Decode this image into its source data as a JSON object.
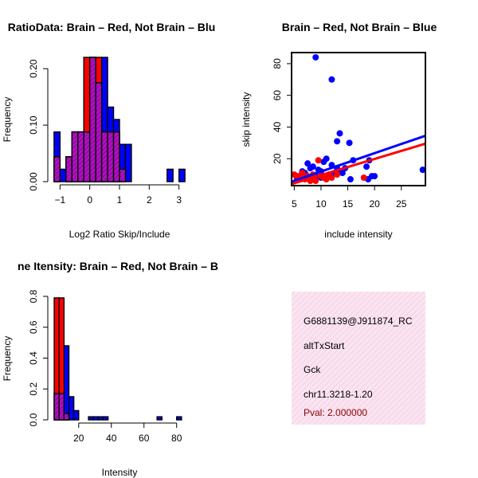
{
  "chart_data": [
    {
      "type": "bar",
      "title": "RatioData: Brain – Red, Not Brain – Blu",
      "xlabel": "Log2 Ratio Skip/Include",
      "ylabel": "Frequency",
      "xlim": [
        -1.25,
        3.25
      ],
      "ylim": [
        0,
        0.22
      ],
      "xticks": [
        -1,
        0,
        1,
        2,
        3
      ],
      "yticks": [
        "0.00",
        "0.10",
        "0.20"
      ],
      "series": [
        {
          "name": "Not Brain",
          "color": "#0000ff",
          "bins": [
            [
              -1.2,
              -1.0,
              0.088
            ],
            [
              -1.0,
              -0.8,
              0.022
            ],
            [
              -0.8,
              -0.6,
              0.044
            ],
            [
              -0.6,
              -0.4,
              0.088
            ],
            [
              -0.4,
              -0.2,
              0.088
            ],
            [
              -0.2,
              0.0,
              0.088
            ],
            [
              0.0,
              0.2,
              0.22
            ],
            [
              0.2,
              0.4,
              0.175
            ],
            [
              0.4,
              0.6,
              0.22
            ],
            [
              0.6,
              0.8,
              0.132
            ],
            [
              0.8,
              1.0,
              0.11
            ],
            [
              1.0,
              1.2,
              0.066
            ],
            [
              1.2,
              1.4,
              0.066
            ],
            [
              2.6,
              2.8,
              0.022
            ],
            [
              3.0,
              3.2,
              0.022
            ]
          ]
        },
        {
          "name": "Brain",
          "color": "#ff0000",
          "bins": [
            [
              -1.2,
              -1.0,
              0.044
            ],
            [
              -1.0,
              -0.8,
              0.0
            ],
            [
              -0.8,
              -0.6,
              0.044
            ],
            [
              -0.6,
              -0.4,
              0.088
            ],
            [
              -0.4,
              -0.2,
              0.088
            ],
            [
              -0.2,
              0.0,
              0.22
            ],
            [
              0.0,
              0.2,
              0.22
            ],
            [
              0.2,
              0.4,
              0.22
            ],
            [
              0.4,
              0.6,
              0.088
            ],
            [
              0.6,
              0.8,
              0.088
            ],
            [
              0.8,
              1.0,
              0.088
            ],
            [
              1.0,
              1.2,
              0.022
            ]
          ]
        }
      ]
    },
    {
      "type": "scatter",
      "title": "Brain – Red, Not Brain – Blue",
      "xlabel": "include intensity",
      "ylabel": "skip intensity",
      "xlim": [
        4.5,
        29.5
      ],
      "ylim": [
        3,
        87
      ],
      "xticks": [
        5,
        10,
        15,
        20,
        25
      ],
      "yticks": [
        20,
        40,
        60,
        80
      ],
      "series": [
        {
          "name": "Not Brain",
          "color": "#0000ff",
          "points": [
            [
              9,
              84
            ],
            [
              12,
              70
            ],
            [
              13.5,
              36
            ],
            [
              13,
              31
            ],
            [
              15.3,
              30
            ],
            [
              16,
              19
            ],
            [
              14.5,
              14
            ],
            [
              18.5,
              15
            ],
            [
              19,
              19
            ],
            [
              19.5,
              9
            ],
            [
              20,
              9
            ],
            [
              18.8,
              7
            ],
            [
              15.5,
              7
            ],
            [
              29,
              13
            ],
            [
              11,
              20
            ],
            [
              10.5,
              18
            ],
            [
              12,
              16
            ],
            [
              13,
              14
            ],
            [
              7.5,
              17
            ],
            [
              8,
              14
            ],
            [
              6.5,
              12
            ],
            [
              7,
              11
            ],
            [
              8.5,
              15
            ],
            [
              9.5,
              13
            ],
            [
              10,
              12
            ],
            [
              11.5,
              10
            ],
            [
              12.5,
              11
            ],
            [
              6,
              9
            ],
            [
              5.5,
              8
            ],
            [
              9,
              9
            ],
            [
              10,
              8
            ],
            [
              8,
              7
            ],
            [
              7,
              8
            ],
            [
              13,
              12
            ],
            [
              14,
              11
            ]
          ],
          "fit": [
            [
              4.5,
              5.5
            ],
            [
              29.5,
              34.5
            ]
          ]
        },
        {
          "name": "Brain",
          "color": "#ff0000",
          "points": [
            [
              5,
              10
            ],
            [
              5.5,
              9
            ],
            [
              6,
              7
            ],
            [
              6.5,
              8
            ],
            [
              7,
              7
            ],
            [
              8,
              6
            ],
            [
              9,
              6
            ],
            [
              10,
              9
            ],
            [
              10.5,
              8
            ],
            [
              11,
              7
            ],
            [
              12,
              8
            ],
            [
              9.5,
              19
            ],
            [
              8.5,
              10
            ],
            [
              13,
              10
            ],
            [
              18,
              8
            ],
            [
              7.5,
              9
            ],
            [
              6.5,
              11
            ],
            [
              11.5,
              9
            ]
          ],
          "fit": [
            [
              4.5,
              4.0
            ],
            [
              29.5,
              29.5
            ]
          ]
        }
      ]
    },
    {
      "type": "bar",
      "title": "ne Itensity: Brain – Red, Not Brain – B",
      "xlabel": "Intensity",
      "ylabel": "Frequency",
      "xlim": [
        4,
        86
      ],
      "ylim": [
        0,
        0.8
      ],
      "xticks": [
        20,
        40,
        60,
        80
      ],
      "yticks": [
        "0.0",
        "0.2",
        "0.4",
        "0.6",
        "0.8"
      ],
      "series": [
        {
          "name": "Not Brain",
          "color": "#0000ff",
          "bins": [
            [
              5,
              8,
              0.17
            ],
            [
              8,
              11,
              0.17
            ],
            [
              11,
              14,
              0.48
            ],
            [
              14,
              17,
              0.15
            ],
            [
              17,
              20,
              0.06
            ],
            [
              26,
              29,
              0.02
            ],
            [
              29,
              32,
              0.02
            ],
            [
              32,
              35,
              0.02
            ],
            [
              35,
              38,
              0.02
            ],
            [
              68,
              71,
              0.02
            ],
            [
              80,
              83,
              0.02
            ]
          ]
        },
        {
          "name": "Brain",
          "color": "#ff0000",
          "bins": [
            [
              5,
              8,
              0.79
            ],
            [
              8,
              11,
              0.79
            ],
            [
              11,
              14,
              0.04
            ]
          ]
        }
      ]
    }
  ],
  "info_panel": {
    "lines": [
      "G6881139@J911874_RC",
      "altTxStart",
      "Gck",
      "chr11.3218-1.20"
    ],
    "pval": "Pval: 2.000000",
    "pval_color": "#8b0000",
    "background": "#f8d8ec"
  }
}
